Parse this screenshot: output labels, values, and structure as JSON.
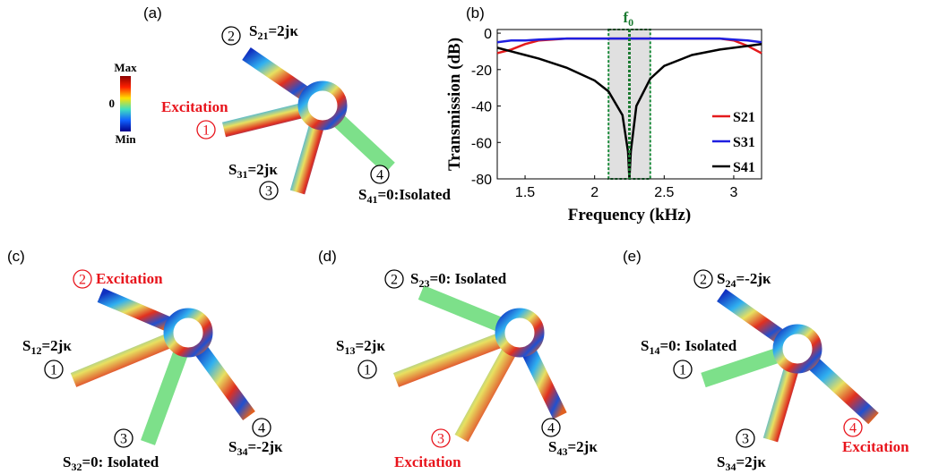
{
  "chart_data": {
    "type": "line",
    "panel": "(b)",
    "xlabel": "Frequency (kHz)",
    "ylabel": "Transmission (dB)",
    "x": [
      1.3,
      1.4,
      1.5,
      1.6,
      1.8,
      2.0,
      2.1,
      2.2,
      2.24,
      2.25,
      2.26,
      2.3,
      2.4,
      2.5,
      2.7,
      2.9,
      3.0,
      3.1,
      3.2
    ],
    "series": [
      {
        "name": "S21",
        "color": "#e41a1c",
        "values": [
          -11,
          -9,
          -6,
          -4,
          -3,
          -3,
          -3,
          -3,
          -3,
          -3,
          -3,
          -3,
          -3,
          -3,
          -3,
          -3,
          -4,
          -7,
          -11
        ]
      },
      {
        "name": "S31",
        "color": "#1f1fe0",
        "values": [
          -5,
          -4,
          -4,
          -3.5,
          -3,
          -3,
          -3,
          -3,
          -3,
          -3,
          -3,
          -3,
          -3,
          -3,
          -3,
          -3,
          -3.5,
          -4,
          -5
        ]
      },
      {
        "name": "S41",
        "color": "#000000",
        "values": [
          -8,
          -10,
          -12,
          -14,
          -19,
          -26,
          -32,
          -45,
          -65,
          -80,
          -65,
          -40,
          -25,
          -18,
          -12,
          -9,
          -8,
          -7,
          -6
        ]
      }
    ],
    "xlim": [
      1.3,
      3.2
    ],
    "xticks": [
      1.5,
      2,
      2.5,
      3
    ],
    "ylim": [
      -80,
      2
    ],
    "yticks": [
      0,
      -20,
      -40,
      -60,
      -80
    ],
    "legend": "lower-right",
    "highlight": [
      2.1,
      2.4
    ],
    "marker": {
      "x": 2.25,
      "label": "f",
      "sub": "0"
    }
  },
  "panels": {
    "a": {
      "label": "(a)",
      "colorbar": [
        "Max",
        "0",
        "Min"
      ],
      "excitation": "Excitation",
      "ports": [
        "1",
        "2",
        "3",
        "4"
      ],
      "s21": {
        "s": "S",
        "sub": "21",
        "rest": "=2jκ"
      },
      "s31": {
        "s": "S",
        "sub": "31",
        "rest": "=2jκ"
      },
      "s41": {
        "s": "S",
        "sub": "41",
        "rest": "=0:Isolated"
      }
    },
    "c": {
      "label": "(c)",
      "excitation": "Excitation",
      "ports": [
        "1",
        "2",
        "3",
        "4"
      ],
      "s12": {
        "s": "S",
        "sub": "12",
        "rest": "=2jκ"
      },
      "s32": {
        "s": "S",
        "sub": "32",
        "rest": "=0: Isolated"
      },
      "s34": {
        "s": "S",
        "sub": "34",
        "rest": "=-2jκ"
      }
    },
    "d": {
      "label": "(d)",
      "excitation": "Excitation",
      "ports": [
        "1",
        "2",
        "3",
        "4"
      ],
      "s23": {
        "s": "S",
        "sub": "23",
        "rest": "=0: Isolated"
      },
      "s13": {
        "s": "S",
        "sub": "13",
        "rest": "=2jκ"
      },
      "s43": {
        "s": "S",
        "sub": "43",
        "rest": "=2jκ"
      }
    },
    "e": {
      "label": "(e)",
      "excitation": "Excitation",
      "ports": [
        "1",
        "2",
        "3",
        "4"
      ],
      "s24": {
        "s": "S",
        "sub": "24",
        "rest": "=-2jκ"
      },
      "s14": {
        "s": "S",
        "sub": "14",
        "rest": "=0: Isolated"
      },
      "s34": {
        "s": "S",
        "sub": "34",
        "rest": "=2jκ"
      }
    }
  }
}
